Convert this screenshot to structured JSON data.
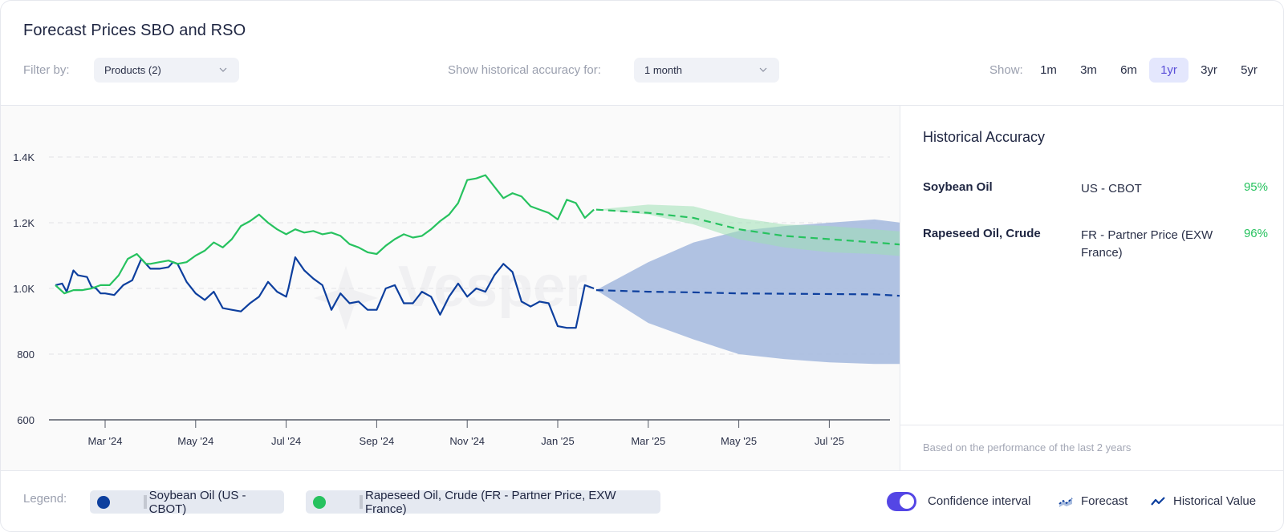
{
  "header": {
    "title": "Forecast Prices SBO and RSO",
    "filter_label": "Filter by:",
    "filter_value": "Products (2)",
    "accuracy_label": "Show historical accuracy for:",
    "accuracy_value": "1 month",
    "show_label": "Show:",
    "ranges": [
      {
        "label": "1m",
        "active": false
      },
      {
        "label": "3m",
        "active": false
      },
      {
        "label": "6m",
        "active": false
      },
      {
        "label": "1yr",
        "active": true
      },
      {
        "label": "3yr",
        "active": false
      },
      {
        "label": "5yr",
        "active": false
      }
    ]
  },
  "side_panel": {
    "title": "Historical Accuracy",
    "rows": [
      {
        "product": "Soybean Oil",
        "source": "US - CBOT",
        "accuracy": "95%"
      },
      {
        "product": "Rapeseed Oil, Crude",
        "source": "FR - Partner Price (EXW France)",
        "accuracy": "96%"
      }
    ],
    "footnote": "Based on the performance of the last 2 years"
  },
  "footer": {
    "legend_label": "Legend:",
    "legend_items": [
      {
        "label": "Soybean Oil (US - CBOT)",
        "color": "#0d3f9e"
      },
      {
        "label": "Rapeseed Oil, Crude (FR - Partner Price, EXW France)",
        "color": "#27c25f"
      }
    ],
    "confidence_label": "Confidence interval",
    "confidence_on": true,
    "forecast_label": "Forecast",
    "historical_label": "Historical Value"
  },
  "colors": {
    "accent": "#5446e5",
    "soybean": "#0d3f9e",
    "rapeseed": "#27c25f",
    "soybean_band": "#a9bddf",
    "rapeseed_band": "#9fe0b4",
    "accuracy_good": "#27c25f"
  },
  "chart_data": {
    "type": "line",
    "title": "",
    "xlabel": "",
    "ylabel": "",
    "watermark": "Vesper",
    "ylim": [
      600,
      1500
    ],
    "yticks": [
      600,
      800,
      1000,
      1200,
      1400
    ],
    "ytick_labels": [
      "600",
      "800",
      "1.0K",
      "1.2K",
      "1.4K"
    ],
    "xlim_months": [
      -1.6,
      18.5
    ],
    "xticks_months": [
      0,
      2,
      4,
      6,
      8,
      10,
      12,
      14,
      16
    ],
    "xtick_labels": [
      "Mar '24",
      "May '24",
      "Jul '24",
      "Sep '24",
      "Nov '24",
      "Jan '25",
      "Mar '25",
      "May '25",
      "Jul '25"
    ],
    "x_unit": "months since 2024-03-01",
    "grid": "horizontal dashed",
    "series": [
      {
        "name": "Soybean Oil (US - CBOT)",
        "kind": "historical",
        "x": [
          -1.1,
          -0.95,
          -0.85,
          -0.7,
          -0.6,
          -0.4,
          -0.3,
          -0.2,
          -0.1,
          0.0,
          0.2,
          0.4,
          0.6,
          0.8,
          1.0,
          1.2,
          1.4,
          1.5,
          1.6,
          1.8,
          2.0,
          2.2,
          2.4,
          2.6,
          2.8,
          3.0,
          3.2,
          3.4,
          3.6,
          3.8,
          4.0,
          4.05,
          4.2,
          4.4,
          4.6,
          4.8,
          5.0,
          5.2,
          5.4,
          5.6,
          5.8,
          6.0,
          6.2,
          6.4,
          6.6,
          6.8,
          7.0,
          7.2,
          7.4,
          7.6,
          7.8,
          8.0,
          8.2,
          8.4,
          8.6,
          8.8,
          9.0,
          9.2,
          9.4,
          9.6,
          9.8,
          10.0,
          10.2,
          10.4,
          10.6,
          10.8
        ],
        "values": [
          1010,
          1015,
          990,
          1055,
          1040,
          1035,
          1005,
          1000,
          985,
          985,
          980,
          1010,
          1025,
          1090,
          1060,
          1060,
          1065,
          1080,
          1075,
          1020,
          985,
          965,
          990,
          940,
          935,
          930,
          955,
          975,
          1020,
          990,
          975,
          1000,
          1095,
          1055,
          1030,
          1010,
          935,
          985,
          955,
          960,
          935,
          935,
          1000,
          1010,
          955,
          955,
          990,
          975,
          920,
          975,
          1015,
          975,
          1000,
          990,
          1040,
          1075,
          1050,
          960,
          945,
          960,
          955,
          885,
          880,
          880,
          1010,
          1000
        ]
      },
      {
        "name": "Rapeseed Oil, Crude (FR - Partner Price, EXW France)",
        "kind": "historical",
        "x": [
          -1.1,
          -0.9,
          -0.7,
          -0.5,
          -0.3,
          -0.1,
          0.1,
          0.3,
          0.5,
          0.7,
          0.9,
          1.0,
          1.2,
          1.4,
          1.6,
          1.8,
          2.0,
          2.2,
          2.4,
          2.6,
          2.8,
          3.0,
          3.2,
          3.4,
          3.6,
          3.8,
          4.0,
          4.2,
          4.4,
          4.6,
          4.8,
          5.0,
          5.2,
          5.4,
          5.6,
          5.8,
          6.0,
          6.2,
          6.4,
          6.6,
          6.8,
          7.0,
          7.2,
          7.4,
          7.6,
          7.8,
          8.0,
          8.2,
          8.4,
          8.6,
          8.8,
          9.0,
          9.2,
          9.4,
          9.6,
          9.8,
          10.0,
          10.2,
          10.4,
          10.6,
          10.8
        ],
        "values": [
          1010,
          985,
          995,
          995,
          1000,
          1010,
          1010,
          1040,
          1090,
          1105,
          1075,
          1075,
          1080,
          1085,
          1075,
          1080,
          1100,
          1115,
          1140,
          1125,
          1150,
          1190,
          1205,
          1225,
          1200,
          1180,
          1165,
          1180,
          1170,
          1175,
          1165,
          1170,
          1160,
          1135,
          1125,
          1110,
          1105,
          1130,
          1150,
          1165,
          1155,
          1160,
          1180,
          1205,
          1225,
          1260,
          1330,
          1335,
          1345,
          1310,
          1275,
          1290,
          1280,
          1250,
          1240,
          1230,
          1210,
          1270,
          1260,
          1215,
          1240
        ]
      },
      {
        "name": "Soybean Oil forecast",
        "kind": "forecast",
        "x": [
          10.85,
          12.0,
          13.0,
          14.0,
          15.0,
          16.0,
          17.0,
          17.9
        ],
        "values": [
          995,
          990,
          988,
          985,
          984,
          983,
          982,
          975
        ],
        "lower": [
          995,
          895,
          845,
          800,
          785,
          775,
          770,
          770
        ],
        "upper": [
          995,
          1080,
          1140,
          1175,
          1190,
          1200,
          1210,
          1195
        ]
      },
      {
        "name": "Rapeseed Oil forecast",
        "kind": "forecast",
        "x": [
          10.85,
          12.0,
          13.0,
          14.0,
          15.0,
          16.0,
          17.0,
          17.9
        ],
        "values": [
          1240,
          1230,
          1215,
          1180,
          1160,
          1150,
          1140,
          1130
        ],
        "lower": [
          1240,
          1225,
          1195,
          1150,
          1125,
          1110,
          1105,
          1095
        ],
        "upper": [
          1240,
          1255,
          1250,
          1215,
          1195,
          1190,
          1180,
          1170
        ]
      }
    ]
  }
}
